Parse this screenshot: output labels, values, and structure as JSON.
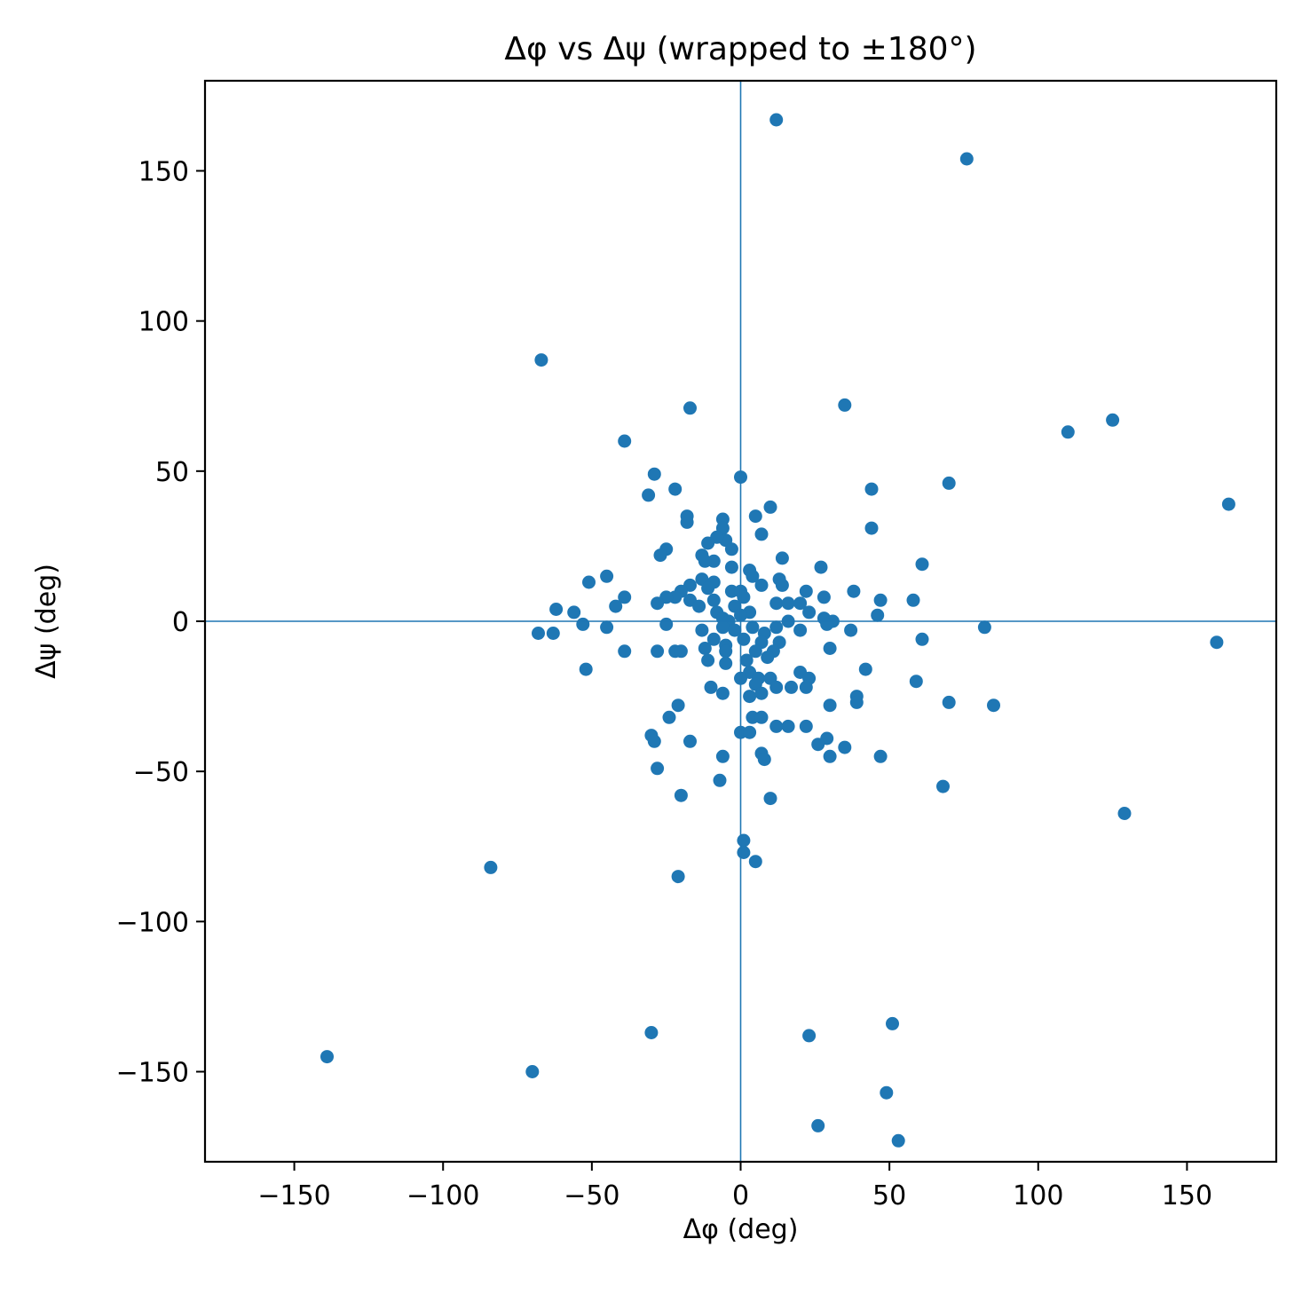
{
  "chart_data": {
    "type": "scatter",
    "title": "Δφ vs Δψ (wrapped to ±180°)",
    "xlabel": "Δφ (deg)",
    "ylabel": "Δψ (deg)",
    "xlim": [
      -180,
      180
    ],
    "ylim": [
      -180,
      180
    ],
    "xticks": [
      -150,
      -100,
      -50,
      0,
      50,
      100,
      150
    ],
    "yticks": [
      -150,
      -100,
      -50,
      0,
      50,
      100,
      150
    ],
    "tick_labels": [
      "−150",
      "−100",
      "−50",
      "0",
      "50",
      "100",
      "150"
    ],
    "grid": false,
    "reference_lines": {
      "x": 0,
      "y": 0
    },
    "color": "#1f77b4",
    "series": [
      {
        "points": [
          [
            12,
            167
          ],
          [
            76,
            154
          ],
          [
            -67,
            87
          ],
          [
            -17,
            71
          ],
          [
            35,
            72
          ],
          [
            110,
            63
          ],
          [
            125,
            67
          ],
          [
            -39,
            60
          ],
          [
            164,
            39
          ],
          [
            70,
            46
          ],
          [
            44,
            44
          ],
          [
            -29,
            49
          ],
          [
            0,
            48
          ],
          [
            -31,
            42
          ],
          [
            -22,
            44
          ],
          [
            10,
            38
          ],
          [
            44,
            31
          ],
          [
            -18,
            35
          ],
          [
            -6,
            34
          ],
          [
            5,
            35
          ],
          [
            -18,
            33
          ],
          [
            -6,
            31
          ],
          [
            7,
            29
          ],
          [
            -5,
            27
          ],
          [
            -8,
            28
          ],
          [
            -11,
            26
          ],
          [
            -3,
            24
          ],
          [
            -25,
            24
          ],
          [
            -27,
            22
          ],
          [
            -13,
            22
          ],
          [
            14,
            21
          ],
          [
            -9,
            20
          ],
          [
            -12,
            20
          ],
          [
            -3,
            18
          ],
          [
            3,
            17
          ],
          [
            27,
            18
          ],
          [
            61,
            19
          ],
          [
            -45,
            15
          ],
          [
            4,
            15
          ],
          [
            13,
            14
          ],
          [
            -13,
            14
          ],
          [
            -9,
            13
          ],
          [
            -17,
            12
          ],
          [
            -51,
            13
          ],
          [
            7,
            12
          ],
          [
            14,
            12
          ],
          [
            -11,
            11
          ],
          [
            -20,
            10
          ],
          [
            -3,
            10
          ],
          [
            0,
            10
          ],
          [
            22,
            10
          ],
          [
            38,
            10
          ],
          [
            -22,
            8
          ],
          [
            -25,
            8
          ],
          [
            -17,
            7
          ],
          [
            -39,
            8
          ],
          [
            -9,
            7
          ],
          [
            1,
            8
          ],
          [
            28,
            8
          ],
          [
            47,
            7
          ],
          [
            58,
            7
          ],
          [
            -28,
            6
          ],
          [
            -14,
            5
          ],
          [
            -42,
            5
          ],
          [
            -62,
            4
          ],
          [
            -2,
            5
          ],
          [
            12,
            6
          ],
          [
            16,
            6
          ],
          [
            20,
            6
          ],
          [
            -56,
            3
          ],
          [
            -8,
            3
          ],
          [
            3,
            3
          ],
          [
            23,
            3
          ],
          [
            46,
            2
          ],
          [
            -6,
            1
          ],
          [
            0,
            2
          ],
          [
            16,
            0
          ],
          [
            28,
            1
          ],
          [
            31,
            0
          ],
          [
            -4,
            0
          ],
          [
            -25,
            -1
          ],
          [
            -53,
            -1
          ],
          [
            -45,
            -2
          ],
          [
            -6,
            -2
          ],
          [
            4,
            -2
          ],
          [
            12,
            -2
          ],
          [
            20,
            -3
          ],
          [
            29,
            -1
          ],
          [
            82,
            -2
          ],
          [
            -68,
            -4
          ],
          [
            -63,
            -4
          ],
          [
            -13,
            -3
          ],
          [
            -2,
            -3
          ],
          [
            8,
            -4
          ],
          [
            37,
            -3
          ],
          [
            -9,
            -6
          ],
          [
            1,
            -6
          ],
          [
            61,
            -6
          ],
          [
            160,
            -7
          ],
          [
            -5,
            -8
          ],
          [
            7,
            -7
          ],
          [
            13,
            -7
          ],
          [
            -12,
            -9
          ],
          [
            -39,
            -10
          ],
          [
            -28,
            -10
          ],
          [
            -22,
            -10
          ],
          [
            -20,
            -10
          ],
          [
            -5,
            -10
          ],
          [
            5,
            -10
          ],
          [
            11,
            -10
          ],
          [
            30,
            -9
          ],
          [
            -11,
            -13
          ],
          [
            -5,
            -14
          ],
          [
            2,
            -13
          ],
          [
            9,
            -12
          ],
          [
            -52,
            -16
          ],
          [
            3,
            -17
          ],
          [
            20,
            -17
          ],
          [
            42,
            -16
          ],
          [
            0,
            -19
          ],
          [
            6,
            -19
          ],
          [
            10,
            -19
          ],
          [
            23,
            -19
          ],
          [
            59,
            -20
          ],
          [
            -10,
            -22
          ],
          [
            5,
            -21
          ],
          [
            12,
            -22
          ],
          [
            17,
            -22
          ],
          [
            22,
            -22
          ],
          [
            -6,
            -24
          ],
          [
            3,
            -25
          ],
          [
            7,
            -24
          ],
          [
            39,
            -25
          ],
          [
            -21,
            -28
          ],
          [
            30,
            -28
          ],
          [
            39,
            -27
          ],
          [
            70,
            -27
          ],
          [
            85,
            -28
          ],
          [
            -24,
            -32
          ],
          [
            4,
            -32
          ],
          [
            7,
            -32
          ],
          [
            12,
            -35
          ],
          [
            16,
            -35
          ],
          [
            22,
            -35
          ],
          [
            -30,
            -38
          ],
          [
            -29,
            -40
          ],
          [
            -17,
            -40
          ],
          [
            0,
            -37
          ],
          [
            3,
            -37
          ],
          [
            29,
            -39
          ],
          [
            -6,
            -45
          ],
          [
            7,
            -44
          ],
          [
            8,
            -46
          ],
          [
            26,
            -41
          ],
          [
            35,
            -42
          ],
          [
            30,
            -45
          ],
          [
            47,
            -45
          ],
          [
            -28,
            -49
          ],
          [
            -7,
            -53
          ],
          [
            68,
            -55
          ],
          [
            -20,
            -58
          ],
          [
            10,
            -59
          ],
          [
            129,
            -64
          ],
          [
            1,
            -73
          ],
          [
            1,
            -77
          ],
          [
            5,
            -80
          ],
          [
            -84,
            -82
          ],
          [
            -21,
            -85
          ],
          [
            -30,
            -137
          ],
          [
            23,
            -138
          ],
          [
            51,
            -134
          ],
          [
            -139,
            -145
          ],
          [
            -70,
            -150
          ],
          [
            49,
            -157
          ],
          [
            26,
            -168
          ],
          [
            53,
            -173
          ]
        ]
      }
    ]
  }
}
